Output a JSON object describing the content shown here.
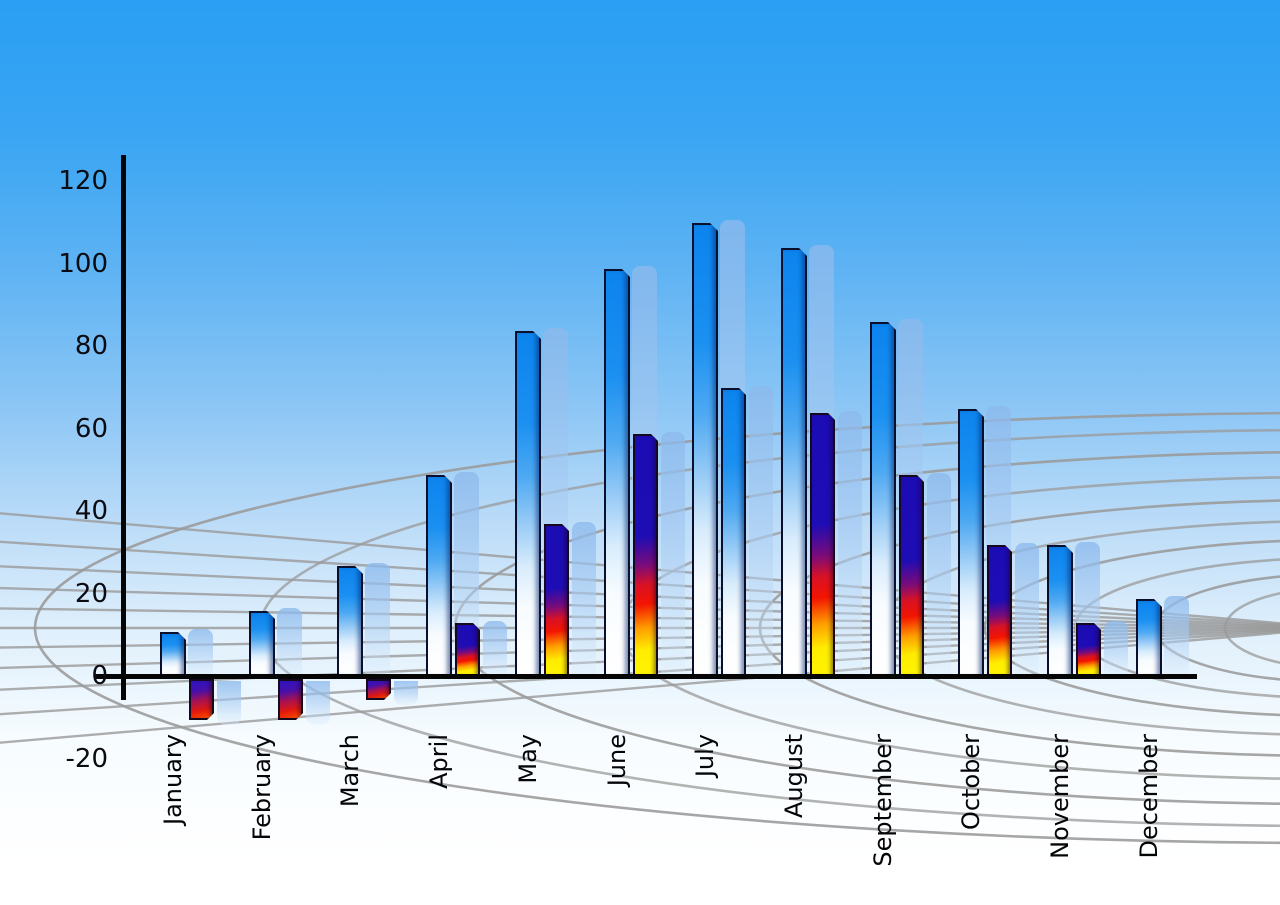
{
  "window": {
    "title": "Monthly bar chart on sky background",
    "kind": "static chart image"
  },
  "chart_data": {
    "type": "bar",
    "title": "",
    "categories": [
      "January",
      "February",
      "March",
      "April",
      "May",
      "June",
      "July",
      "August",
      "September",
      "October",
      "November",
      "December"
    ],
    "series": [
      {
        "name": "primary-blue-bars",
        "values": [
          11,
          16,
          27,
          49,
          84,
          99,
          110,
          104,
          86,
          65,
          32,
          19
        ]
      },
      {
        "name": "secondary-bars",
        "values": [
          -10,
          -10,
          -5,
          13,
          37,
          59,
          70,
          64,
          49,
          32,
          13,
          null
        ]
      }
    ],
    "secondary_bar_styles": [
      "fire",
      "fire",
      "fire",
      "fire",
      "fire",
      "fire",
      "blue",
      "fire",
      "fire",
      "fire",
      "fire",
      "none"
    ],
    "xlabel": "",
    "ylabel": "",
    "y_ticks": [
      120,
      100,
      80,
      60,
      40,
      20,
      0,
      -20
    ],
    "ylim": [
      -20,
      130
    ],
    "x_tick_rotation_deg": 90,
    "legend": "none",
    "grid": "decorative gray curved perspective mesh behind bars",
    "notes": "Each bar has a translucent light-blue 3D echo offset to the right; January–March secondary bars are negative (below zero line); July secondary bar uses the blue gradient style; December has no secondary bar."
  },
  "colors": {
    "sky_top": "#2a9ff3",
    "sky_bottom": "#ffffff",
    "bar_blue": "#0c84ee",
    "bar_blue_fade": "#ffffff",
    "fire_navy": "#1c0cb4",
    "fire_red": "#f31400",
    "fire_yellow": "#ffec00",
    "echo_shadow_blue": "#a9cbee",
    "grid_gray": "#9a9a9a",
    "axis_black": "#050505",
    "tick_label": "#0b0b12"
  }
}
